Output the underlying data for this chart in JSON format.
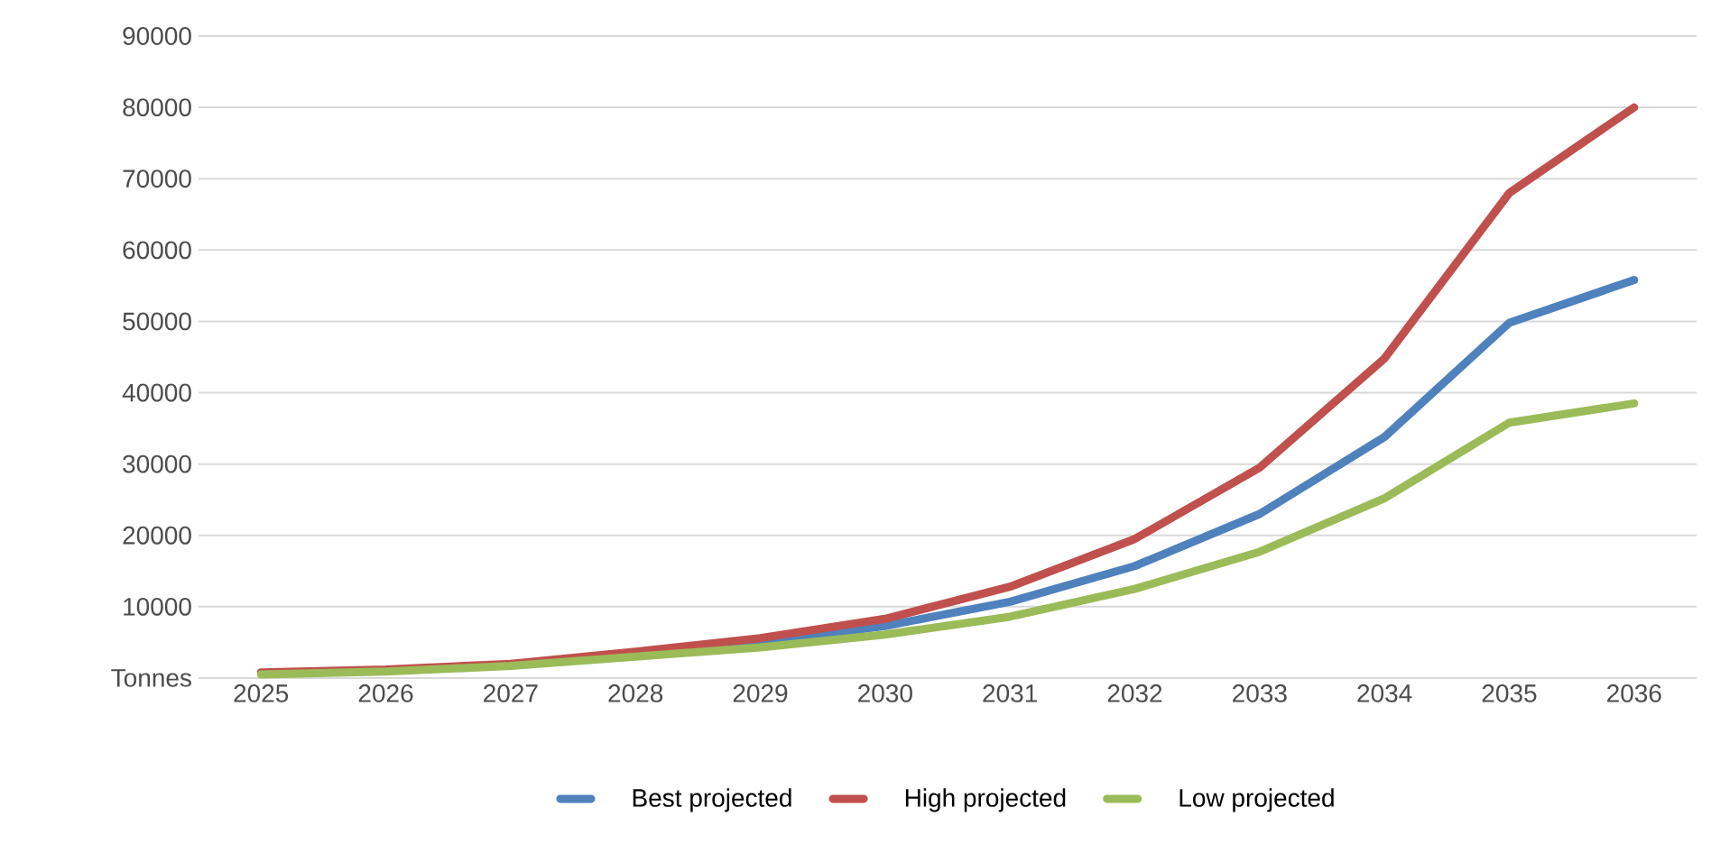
{
  "chart_data": {
    "type": "line",
    "categories": [
      "2025",
      "2026",
      "2027",
      "2028",
      "2029",
      "2030",
      "2031",
      "2032",
      "2033",
      "2034",
      "2035",
      "2036"
    ],
    "series": [
      {
        "name": "Best projected",
        "color": "#4f81bd",
        "values": [
          null,
          null,
          null,
          3400,
          5000,
          7300,
          10700,
          15700,
          23000,
          33800,
          49800,
          55800
        ]
      },
      {
        "name": "High projected",
        "color": "#c0504d",
        "values": [
          800,
          1200,
          2000,
          3700,
          5600,
          8300,
          12800,
          19500,
          29500,
          44800,
          68000,
          80000
        ]
      },
      {
        "name": "Low projected",
        "color": "#9bbb59",
        "values": [
          500,
          900,
          1700,
          3000,
          4300,
          6100,
          8600,
          12500,
          17700,
          25200,
          35800,
          38500
        ]
      }
    ],
    "ylim": [
      0,
      90000
    ],
    "yticks": [
      {
        "value": 0,
        "label": "Tonnes"
      },
      10000,
      20000,
      30000,
      40000,
      50000,
      60000,
      70000,
      80000,
      90000
    ],
    "grid": "y",
    "legend": "bottom",
    "marker": "none",
    "line_style": "solid"
  }
}
